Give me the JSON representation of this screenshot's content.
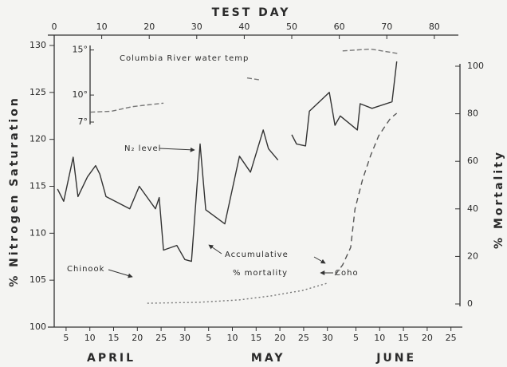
{
  "chart_data": {
    "type": "line",
    "top_xlabel": "TEST DAY",
    "ylabel": "% Nitrogen Saturation",
    "y2label": "% Mortality",
    "xlim": [
      0,
      85.4
    ],
    "xticks": [
      0,
      10,
      20,
      30,
      40,
      50,
      60,
      70,
      80
    ],
    "ylim": [
      100,
      130
    ],
    "yticks": [
      100,
      105,
      110,
      115,
      120,
      125,
      130
    ],
    "y2lim": [
      0,
      100
    ],
    "y2ticks": [
      0,
      20,
      40,
      60,
      80,
      100
    ],
    "y3lim": [
      7,
      15.5
    ],
    "y3ticks": [
      {
        "value": 7,
        "label": "7°"
      },
      {
        "value": 10,
        "label": "10°"
      },
      {
        "value": 15,
        "label": "15°"
      }
    ],
    "date_ticks": [
      {
        "value": 2.5,
        "label": "5"
      },
      {
        "value": 7.5,
        "label": "10"
      },
      {
        "value": 12.5,
        "label": "15"
      },
      {
        "value": 17.5,
        "label": "20"
      },
      {
        "value": 22.5,
        "label": "25"
      },
      {
        "value": 27.5,
        "label": "30"
      },
      {
        "value": 32.5,
        "label": "5"
      },
      {
        "value": 37.5,
        "label": "10"
      },
      {
        "value": 42.5,
        "label": "15"
      },
      {
        "value": 47.5,
        "label": "20"
      },
      {
        "value": 52.5,
        "label": "25"
      },
      {
        "value": 57.5,
        "label": "30"
      },
      {
        "value": 63.5,
        "label": "5"
      },
      {
        "value": 68.5,
        "label": "10"
      },
      {
        "value": 73.5,
        "label": "15"
      },
      {
        "value": 78.5,
        "label": "20"
      },
      {
        "value": 83.5,
        "label": "25"
      }
    ],
    "months": [
      {
        "value": 12,
        "label": "APRIL"
      },
      {
        "value": 45,
        "label": "MAY"
      },
      {
        "value": 72,
        "label": "JUNE"
      }
    ],
    "annotations": [
      "Accumulative",
      "% mortality"
    ],
    "series": [
      {
        "name": "N₂ level",
        "color": "#333333",
        "axis": "y",
        "dash": "",
        "x": [
          0.7,
          2.0,
          4.0,
          5.0,
          7.0,
          8.7,
          9.6,
          10.9,
          15.9,
          17.9,
          21.3,
          22.1,
          23.0,
          25.8,
          27.5,
          28.9,
          30.7,
          31.9,
          35.9,
          39.0,
          41.3,
          44.0,
          45.1,
          47.1,
          null,
          50.0,
          51.0,
          52.9,
          53.7,
          57.9,
          59.1,
          60.2,
          63.8,
          64.4,
          66.9,
          71.1,
          72.1
        ],
        "values": [
          114.7,
          113.4,
          118.1,
          113.9,
          116.0,
          117.2,
          116.3,
          113.9,
          112.6,
          115.0,
          112.6,
          113.8,
          108.2,
          108.7,
          107.2,
          107.0,
          119.5,
          112.5,
          111.0,
          118.2,
          116.5,
          121.0,
          119.0,
          117.8,
          null,
          120.5,
          119.5,
          119.3,
          123.0,
          125.0,
          121.5,
          122.5,
          121.0,
          123.8,
          123.3,
          124.0,
          128.3
        ]
      },
      {
        "name": "Columbia River water temp",
        "color": "#777777",
        "axis": "y3",
        "dash": "6 3",
        "x": [
          7.6,
          12.1,
          16.3,
          19.6,
          23.0,
          null,
          40.6,
          43.1,
          null,
          60.7,
          66.6,
          72.5
        ],
        "values": [
          8.1,
          8.2,
          8.7,
          8.9,
          9.1,
          null,
          11.9,
          11.7,
          null,
          14.9,
          15.1,
          14.6
        ]
      },
      {
        "name": "Coho",
        "color": "#555555",
        "axis": "y2",
        "dash": "7 5",
        "x": [
          59.1,
          60.7,
          62.4,
          63.3,
          64.9,
          66.6,
          68.3,
          70.8,
          72.1
        ],
        "values": [
          12.1,
          16.4,
          23.8,
          39.9,
          52.3,
          62.4,
          70.8,
          78.2,
          80.2
        ]
      },
      {
        "name": "Chinook",
        "color": "#777777",
        "axis": "y2",
        "dash": "2 3",
        "x": [
          19.6,
          30.5,
          38.9,
          45.6,
          52.3,
          57.4
        ],
        "values": [
          0.3,
          0.7,
          1.7,
          3.4,
          5.7,
          8.7
        ]
      }
    ]
  }
}
